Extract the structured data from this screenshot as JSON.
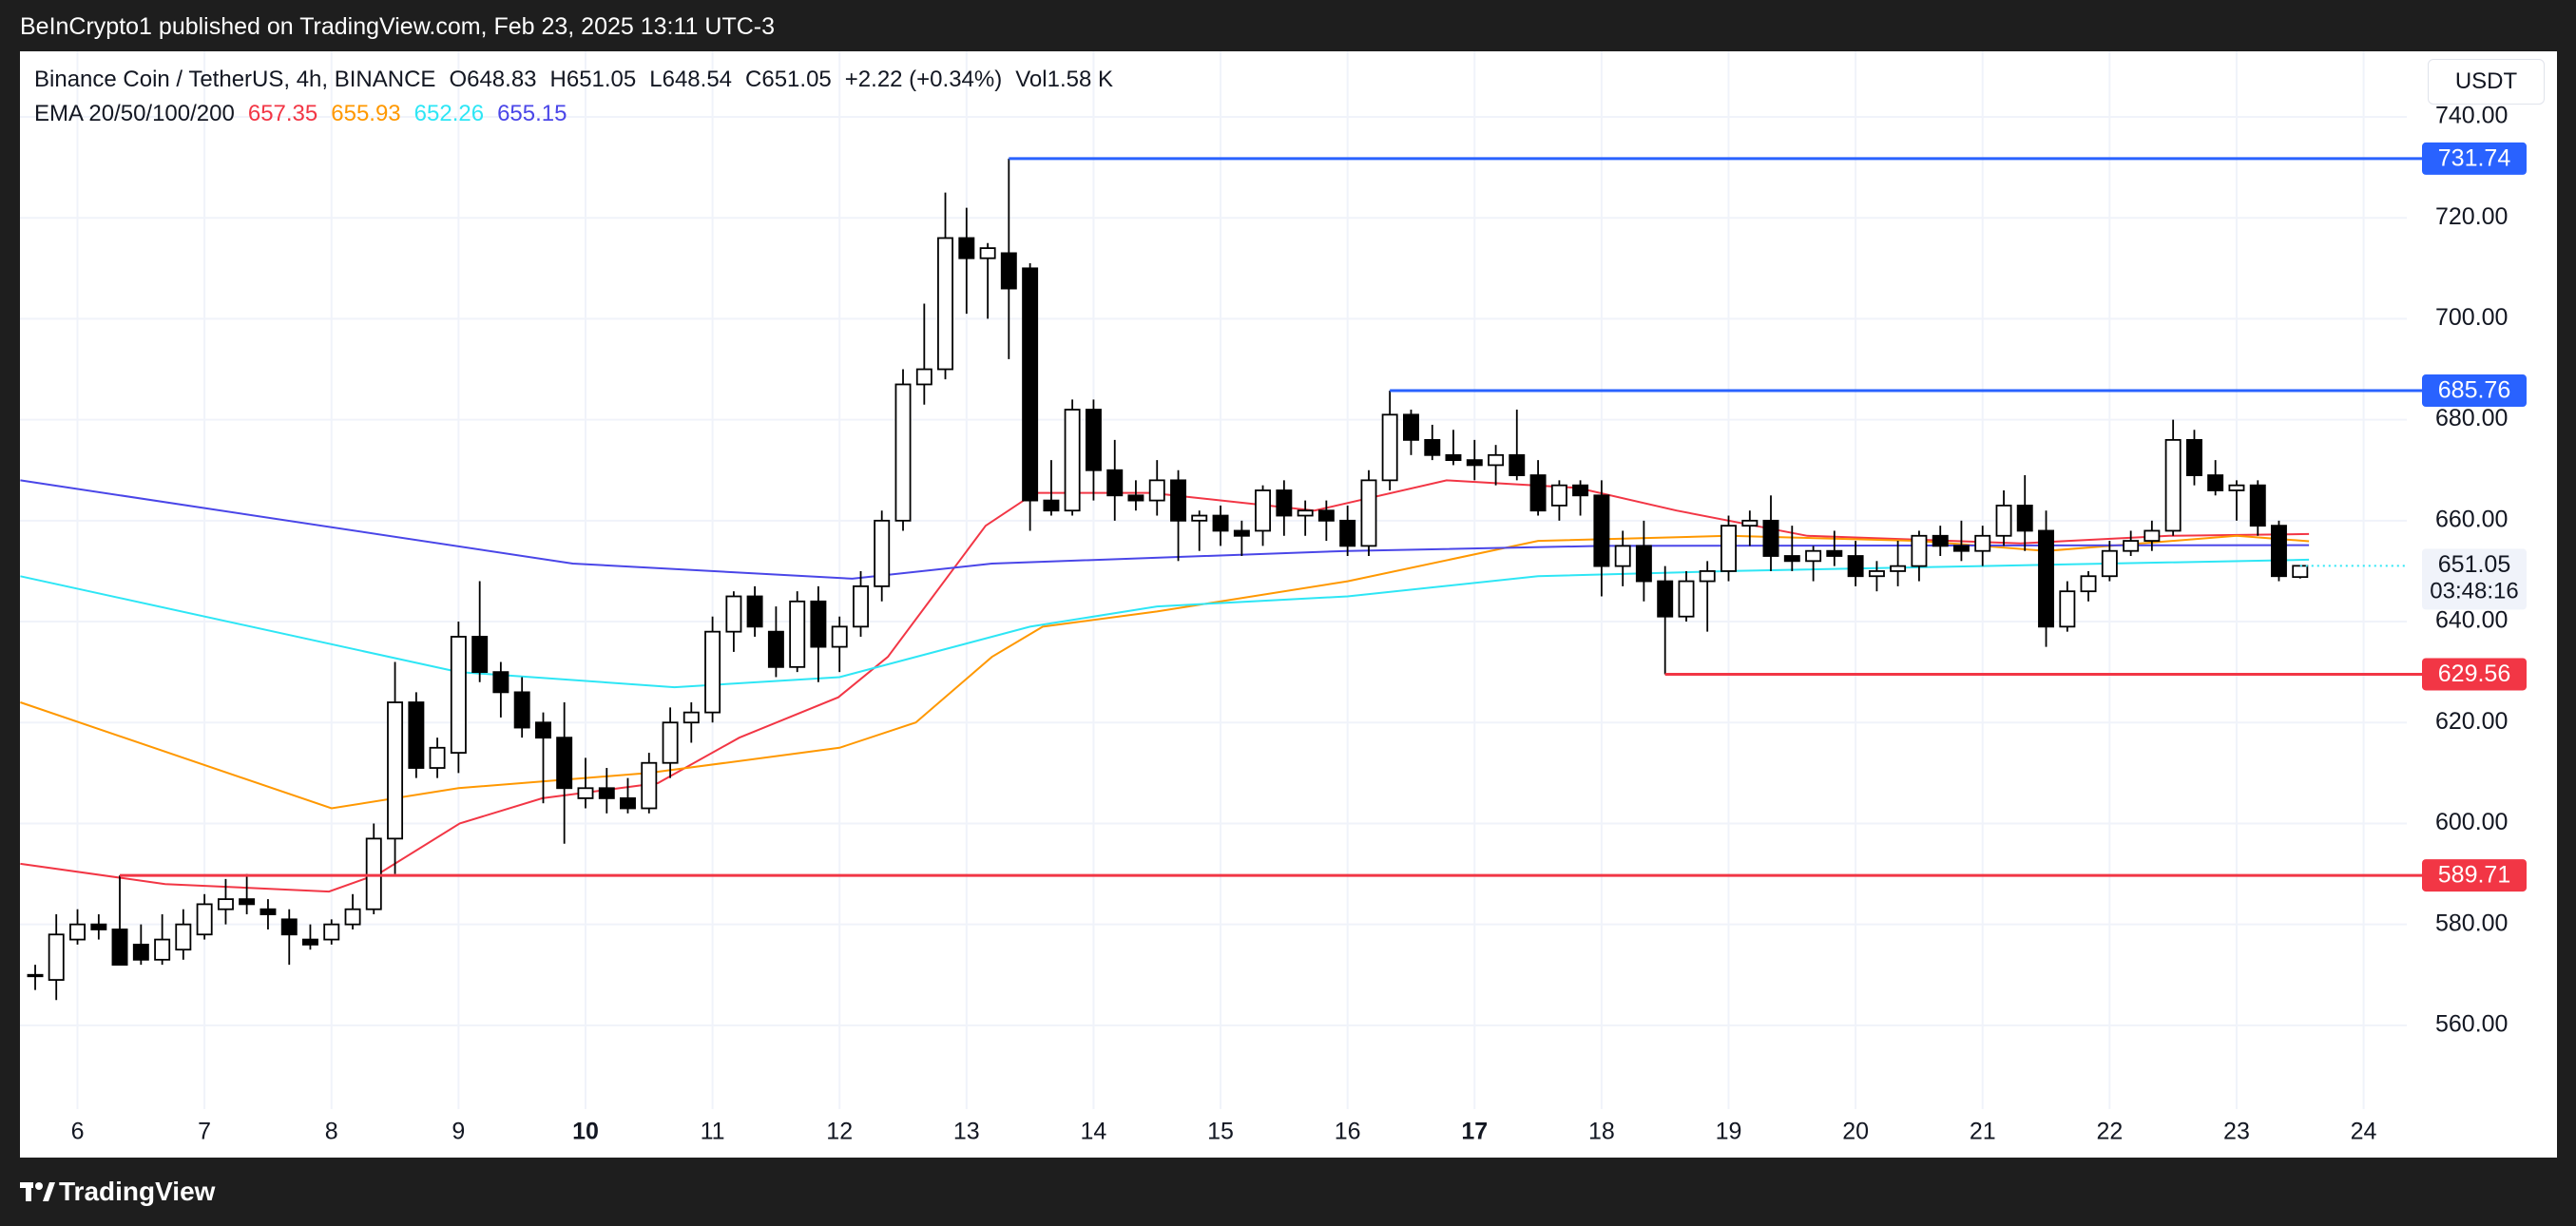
{
  "header": {
    "attribution": "BeInCrypto1 published on TradingView.com, Feb 23, 2025 13:11 UTC-3",
    "symbol": "Binance Coin / TetherUS, 4h, BINANCE",
    "ohlc": [
      "O648.83",
      "H651.05",
      "L648.54",
      "C651.05"
    ],
    "change": "+2.22 (+0.34%)",
    "volume": "Vol1.58 K",
    "currency": "USDT",
    "footer": "TradingView"
  },
  "chart_data": {
    "type": "candlestick",
    "x": [
      5.667,
      5.833,
      6,
      6.167,
      6.333,
      6.5,
      6.667,
      6.833,
      7,
      7.167,
      7.333,
      7.5,
      7.667,
      7.833,
      8,
      8.167,
      8.333,
      8.5,
      8.667,
      8.833,
      9,
      9.167,
      9.333,
      9.5,
      9.667,
      9.833,
      10,
      10.167,
      10.333,
      10.5,
      10.667,
      10.833,
      11,
      11.167,
      11.333,
      11.5,
      11.667,
      11.833,
      12,
      12.167,
      12.333,
      12.5,
      12.667,
      12.833,
      13,
      13.167,
      13.333,
      13.5,
      13.667,
      13.833,
      14,
      14.167,
      14.333,
      14.5,
      14.667,
      14.833,
      15,
      15.167,
      15.333,
      15.5,
      15.667,
      15.833,
      16,
      16.167,
      16.333,
      16.5,
      16.667,
      16.833,
      17,
      17.167,
      17.333,
      17.5,
      17.667,
      17.833,
      18,
      18.167,
      18.333,
      18.5,
      18.667,
      18.833,
      19,
      19.167,
      19.333,
      19.5,
      19.667,
      19.833,
      20,
      20.167,
      20.333,
      20.5,
      20.667,
      20.833,
      21,
      21.167,
      21.333,
      21.5,
      21.667,
      21.833,
      22,
      22.167,
      22.333,
      22.5,
      22.667,
      22.833,
      23,
      23.167,
      23.333,
      23.5
    ],
    "open": [
      570,
      569,
      577,
      580,
      579,
      576,
      573,
      575,
      578,
      583,
      585,
      583,
      581,
      577,
      577,
      580,
      583,
      597,
      624,
      611,
      614,
      637,
      630,
      626,
      620,
      617,
      605,
      607,
      605,
      603,
      612,
      620,
      622,
      638,
      645,
      638,
      631,
      644,
      635,
      639,
      647,
      660,
      687,
      690,
      716,
      712,
      713,
      710,
      664,
      662,
      682,
      670,
      665,
      664,
      668,
      660,
      661,
      658,
      658,
      666,
      661,
      662,
      660,
      655,
      668,
      681,
      676,
      673,
      672,
      671,
      673,
      669,
      663,
      667,
      665,
      651,
      655,
      648,
      641,
      648,
      650,
      659,
      660,
      653,
      652,
      654,
      653,
      649,
      650,
      651,
      657,
      655,
      654,
      657,
      663,
      658,
      639,
      646,
      649,
      654,
      656,
      658,
      676,
      669,
      666,
      667,
      659,
      648.83
    ],
    "high": [
      572,
      582,
      583,
      582,
      589.71,
      580,
      582,
      583,
      586,
      589,
      590,
      585,
      583,
      580,
      581,
      586,
      600,
      632,
      626,
      617,
      640,
      648,
      632,
      629,
      622,
      624,
      613,
      611,
      609,
      614,
      623,
      624,
      641,
      646,
      647,
      643,
      646,
      647,
      641,
      650,
      662,
      690,
      703,
      725,
      722,
      715,
      731.74,
      711,
      672,
      684,
      684,
      676,
      668,
      672,
      670,
      662,
      663,
      660,
      667,
      668,
      664,
      664,
      663,
      670,
      685.76,
      682,
      679,
      678,
      676,
      675,
      682,
      672,
      668,
      668,
      668,
      658,
      660,
      651,
      650,
      652,
      661,
      662,
      665,
      659,
      655,
      658,
      656,
      652,
      656,
      658,
      659,
      660,
      659,
      666,
      669,
      662,
      648,
      650,
      656,
      658,
      660,
      680,
      678,
      672,
      668,
      668,
      660,
      651.05
    ],
    "low": [
      567,
      565,
      576,
      577,
      574,
      572,
      572,
      573,
      577,
      580,
      582,
      579,
      572,
      575,
      576,
      579,
      582,
      590,
      609,
      609,
      610,
      628,
      621,
      617,
      604,
      596,
      603,
      602,
      602,
      602,
      609,
      616,
      620,
      634,
      637,
      629,
      630,
      628,
      630,
      637,
      644,
      658,
      683,
      688,
      701,
      700,
      692,
      658,
      661,
      661,
      664,
      660,
      662,
      661,
      652,
      654,
      655,
      653,
      655,
      657,
      657,
      656,
      653,
      653,
      666,
      673,
      672,
      671,
      668,
      667,
      668,
      661,
      660,
      661,
      645,
      647,
      644,
      629.56,
      640,
      638,
      648,
      655,
      650,
      650,
      648,
      651,
      647,
      646,
      647,
      648,
      653,
      652,
      651,
      655,
      654,
      635,
      638,
      644,
      648,
      653,
      654,
      657,
      667,
      665,
      660,
      657,
      648,
      648.54
    ],
    "close": [
      570,
      578,
      580,
      579,
      572,
      573,
      577,
      580,
      584,
      585,
      584,
      582,
      578,
      576,
      580,
      583,
      597,
      624,
      611,
      615,
      637,
      630,
      626,
      619,
      617,
      607,
      607,
      605,
      603,
      612,
      620,
      622,
      638,
      645,
      639,
      631,
      644,
      635,
      639,
      647,
      660,
      687,
      690,
      716,
      712,
      714,
      706,
      664,
      662,
      682,
      670,
      665,
      664,
      668,
      660,
      661,
      658,
      657,
      666,
      661,
      662,
      660,
      655,
      668,
      681,
      676,
      673,
      672,
      671,
      673,
      669,
      662,
      667,
      665,
      651,
      655,
      648,
      641,
      648,
      650,
      659,
      660,
      653,
      652,
      654,
      653,
      649,
      650,
      651,
      657,
      655,
      654,
      657,
      663,
      658,
      639,
      646,
      649,
      654,
      656,
      658,
      676,
      669,
      666,
      667,
      659,
      649,
      651.05
    ],
    "up_color": "#ffffff",
    "down_color": "#000000",
    "candle_stroke": "#000000",
    "indicator_label": "EMA 20/50/100/200",
    "series": [
      {
        "color": "#f23645",
        "last_value": 657.35,
        "x": [
          5.55,
          6.69,
          7.98,
          8.37,
          9.01,
          9.66,
          10.57,
          11.21,
          11.99,
          12.38,
          13.15,
          13.54,
          14.45,
          15.74,
          16.78,
          17.81,
          18.59,
          19.62,
          21.3,
          22.47,
          23.57
        ],
        "values": [
          592,
          588,
          586.5,
          590,
          600,
          605,
          608,
          617,
          625,
          633,
          659,
          665.5,
          665.5,
          662,
          668,
          666.5,
          662,
          657,
          655.5,
          657,
          657.35
        ]
      },
      {
        "color": "#ff9800",
        "last_value": 655.93,
        "x": [
          5.55,
          8,
          9,
          10.5,
          12,
          12.6,
          13.2,
          13.6,
          14.5,
          16,
          17.5,
          19,
          20.5,
          21.5,
          23,
          23.57
        ],
        "values": [
          624,
          603,
          607,
          610,
          615,
          620,
          633,
          639,
          642,
          648,
          656,
          657,
          656,
          654,
          657,
          655.93
        ]
      },
      {
        "color": "#2ee6f5",
        "last_value": 652.26,
        "x": [
          5.55,
          9,
          10.7,
          12,
          13.5,
          14.5,
          16,
          17.5,
          19,
          21,
          23.57
        ],
        "values": [
          649,
          630,
          627,
          629,
          639,
          643,
          645,
          649,
          650,
          651,
          652.26
        ]
      },
      {
        "color": "#4a46e8",
        "last_value": 655.15,
        "x": [
          5.55,
          9.9,
          12.1,
          13.2,
          16,
          18,
          23.57
        ],
        "values": [
          668,
          651.5,
          648.5,
          651.5,
          654,
          655,
          655.15
        ]
      }
    ],
    "levels": [
      {
        "value": 731.74,
        "start": 13.333,
        "color": "#2962ff"
      },
      {
        "value": 685.76,
        "start": 16.333,
        "color": "#2962ff"
      },
      {
        "value": 629.56,
        "start": 18.5,
        "color": "#f23645"
      },
      {
        "value": 589.71,
        "start": 6.333,
        "color": "#f23645"
      }
    ],
    "last_price": 651.05,
    "countdown": "03:48:16",
    "xlim": [
      5.547,
      24.34
    ],
    "ylim": [
      543.4,
      753
    ],
    "xticks": [
      6,
      7,
      8,
      9,
      10,
      11,
      12,
      13,
      14,
      15,
      16,
      17,
      18,
      19,
      20,
      21,
      22,
      23,
      24
    ],
    "bold_ticks": [
      10,
      17
    ],
    "yticks": [
      {
        "value": 560,
        "label": "560.00"
      },
      {
        "value": 580,
        "label": "580.00"
      },
      {
        "value": 600,
        "label": "600.00"
      },
      {
        "value": 620,
        "label": "620.00"
      },
      {
        "value": 640,
        "label": "640.00"
      },
      {
        "value": 660,
        "label": "660.00"
      },
      {
        "value": 680,
        "label": "680.00"
      },
      {
        "value": 700,
        "label": "700.00"
      },
      {
        "value": 720,
        "label": "720.00"
      },
      {
        "value": 740,
        "label": "740.00"
      }
    ],
    "grid": true
  }
}
